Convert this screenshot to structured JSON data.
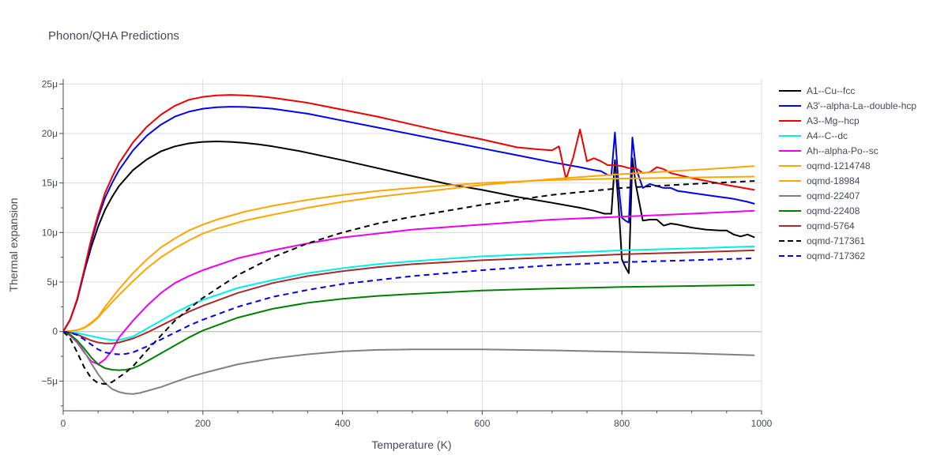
{
  "chart_data": {
    "type": "line",
    "title": "Phonon/QHA Predictions",
    "xlabel": "Temperature (K)",
    "ylabel": "Thermal expansion",
    "xlim": [
      0,
      1000
    ],
    "ylim": [
      -8e-06,
      2.55e-05
    ],
    "x_ticks": [
      0,
      200,
      400,
      600,
      800,
      1000
    ],
    "x_tick_labels": [
      "0",
      "200",
      "400",
      "600",
      "800",
      "1000"
    ],
    "y_ticks": [
      -5e-06,
      0,
      5e-06,
      1e-05,
      1.5e-05,
      2e-05,
      2.5e-05
    ],
    "y_tick_labels": [
      "−5μ",
      "0",
      "5μ",
      "10μ",
      "15μ",
      "20μ",
      "25μ"
    ],
    "grid": true,
    "legend_position": "right",
    "series": [
      {
        "name": "A1--Cu--fcc",
        "color": "#000000",
        "dash": "solid",
        "x": [
          0,
          10,
          20,
          30,
          40,
          50,
          60,
          70,
          80,
          100,
          120,
          140,
          160,
          180,
          200,
          220,
          240,
          260,
          280,
          300,
          340,
          400,
          450,
          500,
          550,
          600,
          650,
          700,
          740,
          760,
          775,
          785,
          790,
          795,
          800,
          805,
          810,
          815,
          820,
          830,
          840,
          850,
          860,
          870,
          880,
          900,
          920,
          940,
          950,
          960,
          970,
          980,
          990
        ],
        "y": [
          0,
          1.2,
          3.2,
          6,
          8.5,
          10.6,
          12.3,
          13.6,
          14.7,
          16.3,
          17.4,
          18.2,
          18.7,
          19.0,
          19.15,
          19.2,
          19.15,
          19.05,
          18.9,
          18.7,
          18.2,
          17.3,
          16.5,
          15.7,
          14.9,
          14.3,
          13.6,
          13.0,
          12.5,
          12.2,
          11.9,
          11.9,
          17.3,
          13,
          7.3,
          6.5,
          5.9,
          17.5,
          14.8,
          11.2,
          11.3,
          11.3,
          10.7,
          10.9,
          10.8,
          10.5,
          10.3,
          10.2,
          10.2,
          9.8,
          9.6,
          9.8,
          9.5
        ]
      },
      {
        "name": "A3'--alpha-La--double-hcp",
        "color": "#0000ee",
        "dash": "solid",
        "x": [
          0,
          10,
          20,
          30,
          40,
          50,
          60,
          70,
          80,
          100,
          120,
          140,
          160,
          180,
          200,
          220,
          240,
          260,
          280,
          300,
          350,
          400,
          450,
          500,
          550,
          600,
          650,
          700,
          740,
          760,
          770,
          775,
          780,
          785,
          790,
          795,
          800,
          805,
          810,
          815,
          820,
          830,
          840,
          850,
          860,
          870,
          880,
          890,
          900,
          920,
          940,
          950,
          960,
          980,
          990
        ],
        "y": [
          0,
          1.2,
          3.2,
          6,
          9,
          11.5,
          13.5,
          15,
          16.3,
          18.3,
          19.8,
          20.9,
          21.7,
          22.2,
          22.5,
          22.65,
          22.7,
          22.68,
          22.6,
          22.5,
          22,
          21.3,
          20.6,
          19.9,
          19.2,
          18.5,
          17.8,
          17.1,
          16.6,
          16.3,
          16.2,
          16.0,
          15.8,
          15.8,
          20.1,
          15.0,
          11.5,
          11.2,
          11.0,
          19.6,
          16.5,
          14.5,
          14.9,
          14.7,
          14.5,
          14.5,
          14.2,
          14.1,
          14.0,
          13.8,
          13.6,
          13.5,
          13.4,
          13.1,
          12.9
        ]
      },
      {
        "name": "A3--Mg--hcp",
        "color": "#ee0000",
        "dash": "solid",
        "x": [
          0,
          10,
          20,
          30,
          40,
          50,
          60,
          70,
          80,
          100,
          120,
          140,
          160,
          180,
          200,
          220,
          240,
          260,
          280,
          300,
          350,
          400,
          450,
          500,
          550,
          600,
          650,
          680,
          700,
          710,
          720,
          730,
          740,
          750,
          760,
          770,
          780,
          790,
          800,
          810,
          820,
          830,
          840,
          850,
          860,
          870,
          900,
          950,
          990
        ],
        "y": [
          0,
          1.2,
          3.3,
          6.2,
          9.3,
          11.8,
          14,
          15.6,
          17,
          19.1,
          20.7,
          21.9,
          22.8,
          23.4,
          23.7,
          23.85,
          23.9,
          23.85,
          23.75,
          23.6,
          23.1,
          22.4,
          21.7,
          20.9,
          20.1,
          19.4,
          18.6,
          18.4,
          18.3,
          18.7,
          15.4,
          17.5,
          20.4,
          17.2,
          17.5,
          17.2,
          16.8,
          16.8,
          16.7,
          16.5,
          16.5,
          16.0,
          16.1,
          16.6,
          16.4,
          16.0,
          15.5,
          14.8,
          14.3
        ]
      },
      {
        "name": "A4--C--dc",
        "color": "#00eeee",
        "dash": "solid",
        "x": [
          0,
          20,
          40,
          60,
          70,
          80,
          100,
          120,
          140,
          160,
          180,
          200,
          250,
          300,
          350,
          400,
          450,
          500,
          600,
          700,
          800,
          900,
          990
        ],
        "y": [
          0,
          -0.15,
          -0.45,
          -0.75,
          -0.85,
          -0.85,
          -0.5,
          0.3,
          1.1,
          1.9,
          2.6,
          3.2,
          4.4,
          5.2,
          5.9,
          6.4,
          6.8,
          7.1,
          7.6,
          7.9,
          8.2,
          8.4,
          8.6
        ]
      },
      {
        "name": "Ah--alpha-Po--sc",
        "color": "#ee00ee",
        "dash": "solid",
        "x": [
          0,
          10,
          20,
          30,
          40,
          50,
          60,
          70,
          80,
          100,
          120,
          140,
          160,
          180,
          200,
          250,
          300,
          350,
          400,
          450,
          500,
          600,
          700,
          800,
          900,
          990
        ],
        "y": [
          0,
          -0.4,
          -1.1,
          -2.1,
          -3,
          -3.3,
          -2.8,
          -1.9,
          -0.6,
          1.1,
          2.6,
          3.9,
          4.9,
          5.6,
          6.2,
          7.4,
          8.2,
          8.9,
          9.5,
          9.9,
          10.3,
          10.8,
          11.3,
          11.6,
          11.9,
          12.2
        ]
      },
      {
        "name": "oqmd-1214748",
        "color": "#ffa500",
        "dash": "solid",
        "x": [
          0,
          10,
          20,
          30,
          40,
          50,
          60,
          80,
          100,
          120,
          140,
          160,
          180,
          200,
          220,
          240,
          260,
          280,
          300,
          350,
          400,
          450,
          500,
          600,
          700,
          800,
          900,
          990
        ],
        "y": [
          0,
          0.05,
          0.15,
          0.35,
          0.8,
          1.4,
          2.2,
          3.7,
          5.1,
          6.4,
          7.5,
          8.4,
          9.2,
          9.9,
          10.4,
          10.8,
          11.2,
          11.5,
          11.8,
          12.5,
          13.1,
          13.6,
          14.0,
          14.8,
          15.4,
          15.9,
          16.3,
          16.7
        ]
      },
      {
        "name": "oqmd-18984",
        "color": "#ffa500",
        "dash": "solid",
        "x": [
          0,
          10,
          20,
          30,
          40,
          50,
          60,
          80,
          100,
          120,
          140,
          160,
          180,
          200,
          220,
          240,
          260,
          280,
          300,
          350,
          400,
          450,
          500,
          600,
          700,
          800,
          900,
          990
        ],
        "y": [
          0,
          0.05,
          0.15,
          0.4,
          0.9,
          1.5,
          2.5,
          4.3,
          5.9,
          7.3,
          8.5,
          9.4,
          10.2,
          10.8,
          11.3,
          11.7,
          12.1,
          12.4,
          12.7,
          13.3,
          13.8,
          14.2,
          14.5,
          15.0,
          15.3,
          15.45,
          15.55,
          15.65
        ]
      },
      {
        "name": "oqmd-22407",
        "color": "#808080",
        "dash": "solid",
        "x": [
          0,
          10,
          20,
          30,
          40,
          50,
          60,
          70,
          80,
          90,
          100,
          110,
          120,
          140,
          160,
          180,
          200,
          250,
          300,
          350,
          400,
          450,
          500,
          550,
          600,
          700,
          800,
          900,
          990
        ],
        "y": [
          0,
          -0.3,
          -1,
          -2,
          -3.2,
          -4.3,
          -5.2,
          -5.8,
          -6.1,
          -6.25,
          -6.3,
          -6.2,
          -6.0,
          -5.6,
          -5.1,
          -4.6,
          -4.2,
          -3.3,
          -2.7,
          -2.3,
          -2.0,
          -1.85,
          -1.8,
          -1.8,
          -1.8,
          -1.9,
          -2.05,
          -2.2,
          -2.4
        ]
      },
      {
        "name": "oqmd-22408",
        "color": "#008000",
        "dash": "solid",
        "x": [
          0,
          10,
          20,
          30,
          40,
          50,
          60,
          70,
          80,
          90,
          100,
          110,
          120,
          140,
          160,
          180,
          200,
          250,
          300,
          350,
          400,
          450,
          500,
          600,
          700,
          800,
          900,
          990
        ],
        "y": [
          0,
          -0.3,
          -0.9,
          -1.7,
          -2.6,
          -3.3,
          -3.7,
          -3.85,
          -3.9,
          -3.85,
          -3.7,
          -3.4,
          -3.0,
          -2.2,
          -1.4,
          -0.6,
          0.1,
          1.4,
          2.3,
          2.9,
          3.3,
          3.6,
          3.8,
          4.15,
          4.35,
          4.5,
          4.6,
          4.7
        ]
      },
      {
        "name": "oqmd-5764",
        "color": "#a52a2a",
        "dash": "solid",
        "x": [
          0,
          10,
          20,
          30,
          40,
          50,
          60,
          70,
          80,
          100,
          120,
          140,
          160,
          180,
          200,
          250,
          300,
          350,
          400,
          450,
          500,
          600,
          700,
          800,
          900,
          990
        ],
        "y": [
          0,
          -0.1,
          -0.3,
          -0.6,
          -0.9,
          -1.1,
          -1.2,
          -1.2,
          -1.1,
          -0.7,
          -0.1,
          0.6,
          1.3,
          2.0,
          2.6,
          3.9,
          4.9,
          5.6,
          6.1,
          6.5,
          6.8,
          7.2,
          7.5,
          7.8,
          8.0,
          8.2
        ]
      },
      {
        "name": "oqmd-717361",
        "color": "#000000",
        "dash": "dash",
        "x": [
          0,
          10,
          20,
          30,
          40,
          50,
          60,
          70,
          80,
          90,
          100,
          110,
          120,
          140,
          160,
          180,
          200,
          250,
          300,
          350,
          400,
          450,
          500,
          600,
          700,
          800,
          900,
          990
        ],
        "y": [
          0,
          -0.7,
          -2.1,
          -3.6,
          -4.7,
          -5.2,
          -5.3,
          -5.1,
          -4.6,
          -4.1,
          -3.5,
          -2.7,
          -1.9,
          -0.4,
          1.1,
          2.3,
          3.4,
          5.7,
          7.5,
          8.9,
          10.0,
          10.9,
          11.6,
          12.8,
          13.8,
          14.5,
          14.9,
          15.2
        ]
      },
      {
        "name": "oqmd-717362",
        "color": "#0000ee",
        "dash": "dash",
        "x": [
          0,
          10,
          20,
          30,
          40,
          50,
          60,
          70,
          80,
          90,
          100,
          120,
          140,
          160,
          180,
          200,
          250,
          300,
          350,
          400,
          450,
          500,
          600,
          700,
          800,
          900,
          990
        ],
        "y": [
          0,
          -0.1,
          -0.35,
          -0.8,
          -1.3,
          -1.8,
          -2.1,
          -2.25,
          -2.3,
          -2.25,
          -2.1,
          -1.5,
          -0.8,
          -0.1,
          0.6,
          1.2,
          2.5,
          3.5,
          4.2,
          4.8,
          5.2,
          5.6,
          6.2,
          6.7,
          7.0,
          7.2,
          7.4
        ]
      }
    ]
  }
}
